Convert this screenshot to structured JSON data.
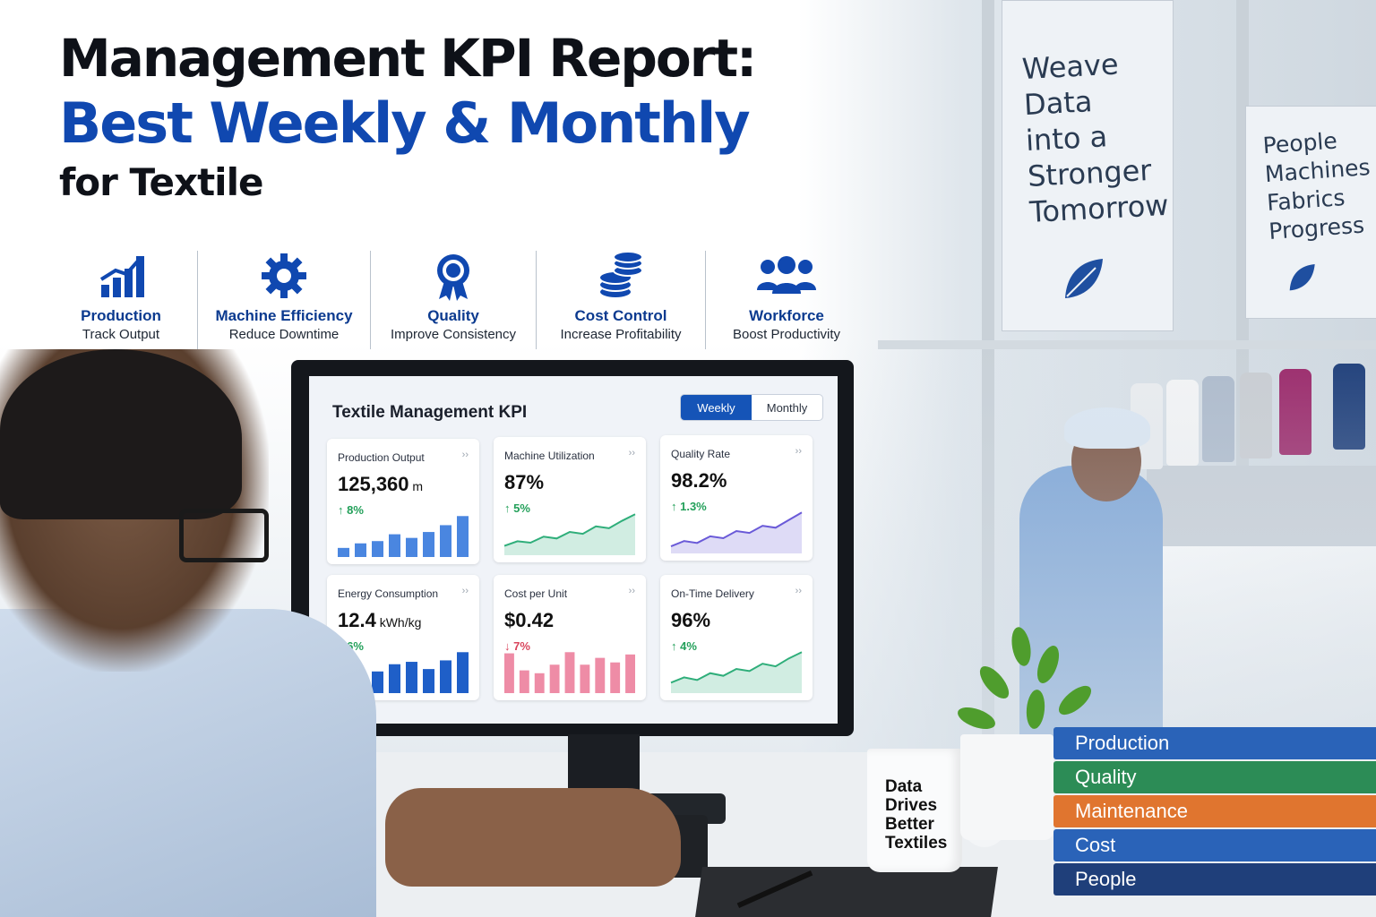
{
  "headline": {
    "line1": "Management KPI Report:",
    "line2": "Best Weekly & Monthly",
    "line3": "for Textile"
  },
  "features": [
    {
      "icon": "bar-chart-icon",
      "label": "Production",
      "sub": "Track Output"
    },
    {
      "icon": "gear-icon",
      "label": "Machine Efficiency",
      "sub": "Reduce Downtime"
    },
    {
      "icon": "award-ribbon-icon",
      "label": "Quality",
      "sub": "Improve Consistency"
    },
    {
      "icon": "coin-stack-icon",
      "label": "Cost Control",
      "sub": "Increase Profitability"
    },
    {
      "icon": "people-group-icon",
      "label": "Workforce",
      "sub": "Boost Productivity"
    }
  ],
  "banners": {
    "left": "Weave\nData\ninto a\nStronger\nTomorrow",
    "right": "People\nMachines\nFabrics\nProgress"
  },
  "dashboard": {
    "title": "Textile Management KPI",
    "tabs": [
      {
        "label": "Weekly",
        "active": true
      },
      {
        "label": "Monthly",
        "active": false
      }
    ],
    "cards": [
      {
        "label": "Production Output",
        "value": "125,360",
        "unit": "m",
        "delta": "↑ 8%",
        "delta_color": "#23a05a",
        "chart": "bar",
        "color": "#4a86e0",
        "series": [
          2,
          3,
          3.5,
          5,
          4.2,
          5.5,
          7,
          9
        ]
      },
      {
        "label": "Machine Utilization",
        "value": "87%",
        "unit": "",
        "delta": "↑ 5%",
        "delta_color": "#23a05a",
        "chart": "area",
        "color": "#2fae7a",
        "series": [
          2,
          3,
          2.7,
          4,
          3.6,
          5,
          4.6,
          6.2,
          5.8,
          7.4,
          8.8
        ]
      },
      {
        "label": "Quality Rate",
        "value": "98.2%",
        "unit": "",
        "delta": "↑ 1.3%",
        "delta_color": "#23a05a",
        "chart": "area",
        "color": "#6a5ad8",
        "series": [
          1.5,
          2.6,
          2.2,
          3.6,
          3.2,
          4.7,
          4.3,
          5.8,
          5.4,
          7,
          8.6
        ]
      },
      {
        "label": "Energy Consumption",
        "value": "12.4",
        "unit": "kWh/kg",
        "delta": "↓ 6%",
        "delta_color": "#23a05a",
        "chart": "bar",
        "color": "#1f5fc8",
        "series": [
          4,
          3.5,
          4.5,
          6,
          6.5,
          5,
          6.8,
          8.5
        ]
      },
      {
        "label": "Cost per Unit",
        "value": "$0.42",
        "unit": "",
        "delta": "↓ 7%",
        "delta_color": "#d9455c",
        "chart": "bar",
        "color": "#ee8ca6",
        "series": [
          7,
          4,
          3.5,
          5,
          7.2,
          5,
          6.2,
          5.4,
          6.8
        ]
      },
      {
        "label": "On-Time Delivery",
        "value": "96%",
        "unit": "",
        "delta": "↑ 4%",
        "delta_color": "#23a05a",
        "chart": "area",
        "color": "#2fae7a",
        "series": [
          2,
          3,
          2.5,
          3.8,
          3.3,
          4.6,
          4.2,
          5.6,
          5.1,
          6.6,
          7.8
        ]
      }
    ]
  },
  "mug": "Data\nDrives\nBetter\nTextiles",
  "books": [
    {
      "label": "Production",
      "color": "#2a63b8"
    },
    {
      "label": "Quality",
      "color": "#2c8c56"
    },
    {
      "label": "Maintenance",
      "color": "#e0752f"
    },
    {
      "label": "Cost",
      "color": "#2a63b8"
    },
    {
      "label": "People",
      "color": "#1f3f7a"
    }
  ]
}
